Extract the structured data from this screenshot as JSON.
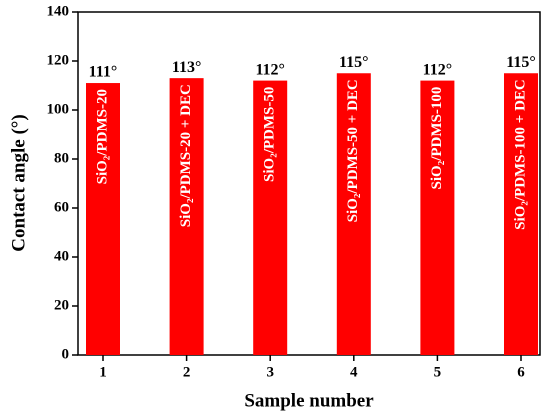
{
  "chart_data": {
    "type": "bar",
    "x_label": "Sample number",
    "y_label": "Contact angle (°)",
    "categories": [
      "1",
      "2",
      "3",
      "4",
      "5",
      "6"
    ],
    "values": [
      111,
      113,
      112,
      115,
      112,
      115
    ],
    "value_labels": [
      "111°",
      "113°",
      "112°",
      "115°",
      "112°",
      "115°"
    ],
    "bar_labels": [
      "SiO₂/PDMS-20",
      "SiO₂/PDMS-20 + DEC",
      "SiO₂/PDMS-50",
      "SiO₂/PDMS-50 + DEC",
      "SiO₂/PDMS-100",
      "SiO₂/PDMS-100 + DEC"
    ],
    "color": "#ff0000",
    "ylim": [
      0,
      140
    ],
    "yticks": [
      0,
      20,
      40,
      60,
      80,
      100,
      120,
      140
    ],
    "grid": false
  }
}
